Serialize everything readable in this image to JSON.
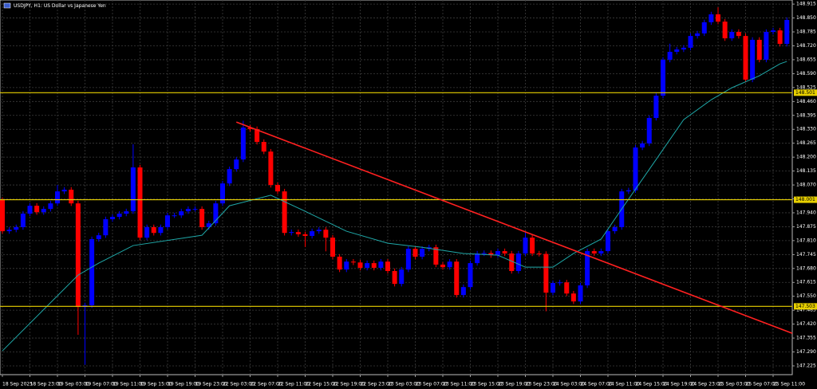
{
  "chart_data": {
    "type": "candlestick",
    "title": "USDJPY, H1:  US Dollar vs Japanese Yen",
    "x": [
      "18 Sep 2025",
      null,
      null,
      null,
      "18 Sep 23:00",
      null,
      null,
      null,
      "19 Sep 03:00",
      null,
      null,
      null,
      "19 Sep 07:00",
      null,
      null,
      null,
      "19 Sep 11:00",
      null,
      null,
      null,
      "19 Sep 15:00",
      null,
      null,
      null,
      "19 Sep 19:00",
      null,
      null,
      null,
      "19 Sep 23:00",
      null,
      null,
      null,
      "22 Sep 03:00",
      null,
      null,
      null,
      "22 Sep 07:00",
      null,
      null,
      null,
      "22 Sep 11:00",
      null,
      null,
      null,
      "22 Sep 15:00",
      null,
      null,
      null,
      "22 Sep 19:00",
      null,
      null,
      null,
      "22 Sep 23:00",
      null,
      null,
      null,
      "23 Sep 03:00",
      null,
      null,
      null,
      "23 Sep 07:00",
      null,
      null,
      null,
      "23 Sep 11:00",
      null,
      null,
      null,
      "23 Sep 15:00",
      null,
      null,
      null,
      "23 Sep 19:00",
      null,
      null,
      null,
      "23 Sep 23:00",
      null,
      null,
      null,
      "24 Sep 03:00",
      null,
      null,
      null,
      "24 Sep 07:00",
      null,
      null,
      null,
      "24 Sep 11:00",
      null,
      null,
      null,
      "24 Sep 15:00",
      null,
      null,
      null,
      "24 Sep 19:00",
      null,
      null,
      null,
      "24 Sep 23:00",
      null,
      null,
      null,
      "25 Sep 03:00",
      null,
      null,
      null,
      "25 Sep 07:00",
      null,
      null,
      null,
      "25 Sep 11:00",
      null,
      null
    ],
    "open": [
      148.0,
      147.854,
      147.861,
      147.873,
      147.936,
      147.973,
      147.943,
      147.958,
      147.984,
      148.04,
      148.048,
      147.984,
      147.5,
      147.508,
      147.817,
      147.835,
      147.91,
      147.921,
      147.936,
      147.947,
      148.152,
      147.824,
      147.873,
      147.846,
      147.873,
      147.928,
      147.928,
      147.947,
      147.958,
      147.958,
      147.873,
      147.891,
      147.984,
      148.077,
      148.144,
      148.189,
      148.338,
      148.331,
      148.271,
      148.226,
      148.07,
      148.04,
      147.846,
      147.85,
      147.84,
      147.832,
      147.854,
      147.861,
      147.824,
      147.735,
      147.675,
      147.712,
      147.708,
      147.683,
      147.705,
      147.683,
      147.712,
      147.668,
      147.608,
      147.675,
      147.772,
      147.735,
      147.772,
      147.779,
      147.698,
      147.686,
      147.712,
      147.556,
      147.593,
      147.705,
      147.75,
      147.752,
      147.742,
      147.761,
      147.75,
      147.668,
      147.75,
      147.824,
      147.75,
      147.748,
      147.567,
      147.612,
      147.615,
      147.563,
      147.526,
      147.601,
      147.761,
      147.75,
      147.761,
      147.854,
      147.873,
      148.04,
      148.045,
      148.245,
      148.264,
      148.383,
      148.487,
      148.655,
      148.692,
      148.703,
      148.711,
      148.766,
      148.778,
      148.83,
      148.867,
      148.833,
      148.755,
      148.785,
      148.766,
      148.562,
      148.748,
      148.655,
      148.785,
      148.792,
      148.729
    ],
    "high": [
      148.012,
      147.873,
      147.885,
      147.948,
      147.985,
      147.985,
      147.97,
      147.996,
      148.07,
      148.06,
      148.06,
      147.996,
      147.52,
      147.829,
      147.847,
      147.922,
      147.933,
      147.948,
      147.959,
      148.26,
      148.164,
      147.885,
      147.885,
      147.885,
      147.94,
      147.94,
      147.959,
      147.97,
      147.97,
      147.97,
      147.903,
      147.996,
      148.089,
      148.156,
      148.201,
      148.37,
      148.35,
      148.343,
      148.283,
      148.238,
      148.082,
      148.052,
      147.862,
      147.862,
      147.852,
      147.866,
      147.873,
      147.873,
      147.836,
      147.747,
      147.724,
      147.724,
      147.72,
      147.717,
      147.717,
      147.724,
      147.724,
      147.68,
      147.687,
      147.784,
      147.784,
      147.784,
      147.791,
      147.791,
      147.71,
      147.724,
      147.724,
      147.605,
      147.717,
      147.762,
      147.764,
      147.764,
      147.773,
      147.773,
      147.762,
      147.762,
      147.85,
      147.836,
      147.762,
      147.76,
      147.624,
      147.627,
      147.627,
      147.575,
      147.613,
      147.773,
      147.773,
      147.773,
      147.866,
      147.885,
      148.052,
      148.057,
      148.257,
      148.276,
      148.395,
      148.499,
      148.667,
      148.73,
      148.715,
      148.723,
      148.778,
      148.79,
      148.842,
      148.879,
      148.9,
      148.845,
      148.797,
      148.797,
      148.778,
      148.76,
      148.76,
      148.797,
      148.804,
      148.804,
      148.853
    ],
    "low": [
      147.842,
      147.842,
      147.849,
      147.861,
      147.924,
      147.931,
      147.931,
      147.946,
      147.972,
      148.028,
      147.972,
      147.37,
      147.23,
      147.496,
      147.805,
      147.823,
      147.898,
      147.909,
      147.924,
      147.935,
      147.812,
      147.812,
      147.834,
      147.834,
      147.861,
      147.916,
      147.916,
      147.935,
      147.946,
      147.861,
      147.861,
      147.879,
      147.972,
      148.065,
      148.132,
      148.177,
      148.319,
      148.259,
      148.214,
      148.058,
      148.028,
      147.834,
      147.834,
      147.828,
      147.78,
      147.82,
      147.842,
      147.76,
      147.723,
      147.663,
      147.663,
      147.696,
      147.671,
      147.671,
      147.671,
      147.671,
      147.656,
      147.596,
      147.596,
      147.663,
      147.723,
      147.723,
      147.76,
      147.686,
      147.674,
      147.674,
      147.544,
      147.544,
      147.581,
      147.693,
      147.738,
      147.73,
      147.73,
      147.738,
      147.656,
      147.656,
      147.738,
      147.738,
      147.736,
      147.48,
      147.555,
      147.6,
      147.551,
      147.514,
      147.514,
      147.589,
      147.738,
      147.738,
      147.749,
      147.842,
      147.861,
      148.028,
      148.033,
      148.233,
      148.252,
      148.371,
      148.475,
      148.643,
      148.68,
      148.691,
      148.699,
      148.754,
      148.766,
      148.818,
      148.821,
      148.743,
      148.743,
      148.754,
      148.55,
      148.55,
      148.643,
      148.643,
      148.773,
      148.717,
      148.717
    ],
    "close": [
      147.854,
      147.861,
      147.873,
      147.936,
      147.973,
      147.943,
      147.958,
      147.984,
      148.04,
      148.048,
      147.984,
      147.5,
      147.508,
      147.817,
      147.835,
      147.91,
      147.921,
      147.936,
      147.947,
      148.152,
      147.824,
      147.873,
      147.846,
      147.873,
      147.928,
      147.928,
      147.947,
      147.958,
      147.958,
      147.873,
      147.891,
      147.984,
      148.077,
      148.144,
      148.189,
      148.338,
      148.331,
      148.271,
      148.226,
      148.07,
      148.04,
      147.846,
      147.85,
      147.84,
      147.832,
      147.854,
      147.861,
      147.824,
      147.735,
      147.675,
      147.712,
      147.708,
      147.683,
      147.705,
      147.683,
      147.712,
      147.668,
      147.608,
      147.675,
      147.772,
      147.735,
      147.772,
      147.779,
      147.698,
      147.686,
      147.712,
      147.556,
      147.593,
      147.705,
      147.75,
      147.752,
      147.742,
      147.761,
      147.75,
      147.668,
      147.75,
      147.824,
      147.75,
      147.748,
      147.567,
      147.612,
      147.615,
      147.563,
      147.526,
      147.601,
      147.761,
      147.75,
      147.761,
      147.854,
      147.873,
      148.04,
      148.045,
      148.245,
      148.264,
      148.383,
      148.487,
      148.655,
      148.692,
      148.703,
      148.711,
      148.766,
      148.778,
      148.83,
      148.867,
      148.833,
      148.755,
      148.785,
      148.766,
      148.562,
      148.748,
      148.655,
      148.785,
      148.792,
      148.729,
      148.841
    ],
    "up_color": "#0000ff",
    "down_color": "#ff0000",
    "moving_average": {
      "color": "#1fa8a8",
      "x": [
        0,
        11,
        14,
        19,
        29,
        33,
        39,
        44,
        50,
        56,
        61,
        67,
        72,
        76,
        80,
        83,
        87,
        90,
        95,
        99,
        103,
        106,
        110,
        113,
        114
      ],
      "values": [
        147.295,
        147.649,
        147.705,
        147.787,
        147.835,
        147.973,
        148.022,
        147.947,
        147.854,
        147.798,
        147.779,
        147.75,
        147.742,
        147.686,
        147.686,
        147.75,
        147.817,
        147.958,
        148.189,
        148.375,
        148.468,
        148.524,
        148.58,
        148.636,
        148.647
      ]
    },
    "levels": [
      {
        "value": 148.501,
        "color": "#e8d000"
      },
      {
        "value": 148.001,
        "color": "#e8d000"
      },
      {
        "value": 147.503,
        "color": "#e8d000"
      }
    ],
    "trendline": {
      "color": "#ff2020",
      "from": {
        "x": 34,
        "y": 148.364
      },
      "to": {
        "x": 115,
        "y": 147.377
      }
    },
    "ylim": [
      147.184,
      148.934
    ],
    "yticks": [
      148.915,
      {
        "value": 148.85,
        "label": "148.850"
      },
      148.785,
      {
        "value": 148.72,
        "label": "148.720"
      },
      148.655,
      {
        "value": 148.59,
        "label": "148.590"
      },
      148.525,
      {
        "value": 148.46,
        "label": "148.460"
      },
      148.395,
      {
        "value": 148.33,
        "label": "148.330"
      },
      148.265,
      {
        "value": 148.2,
        "label": "148.200"
      },
      148.135,
      {
        "value": 148.07,
        "label": "148.070"
      },
      148.005,
      {
        "value": 147.94,
        "label": "147.940"
      },
      147.875,
      {
        "value": 147.81,
        "label": "147.810"
      },
      147.745,
      {
        "value": 147.68,
        "label": "147.680"
      },
      147.615,
      {
        "value": 147.55,
        "label": "147.550"
      },
      147.485,
      {
        "value": 147.42,
        "label": "147.420"
      },
      147.355,
      {
        "value": 147.29,
        "label": "147.290"
      },
      147.225
    ],
    "grid": true
  }
}
